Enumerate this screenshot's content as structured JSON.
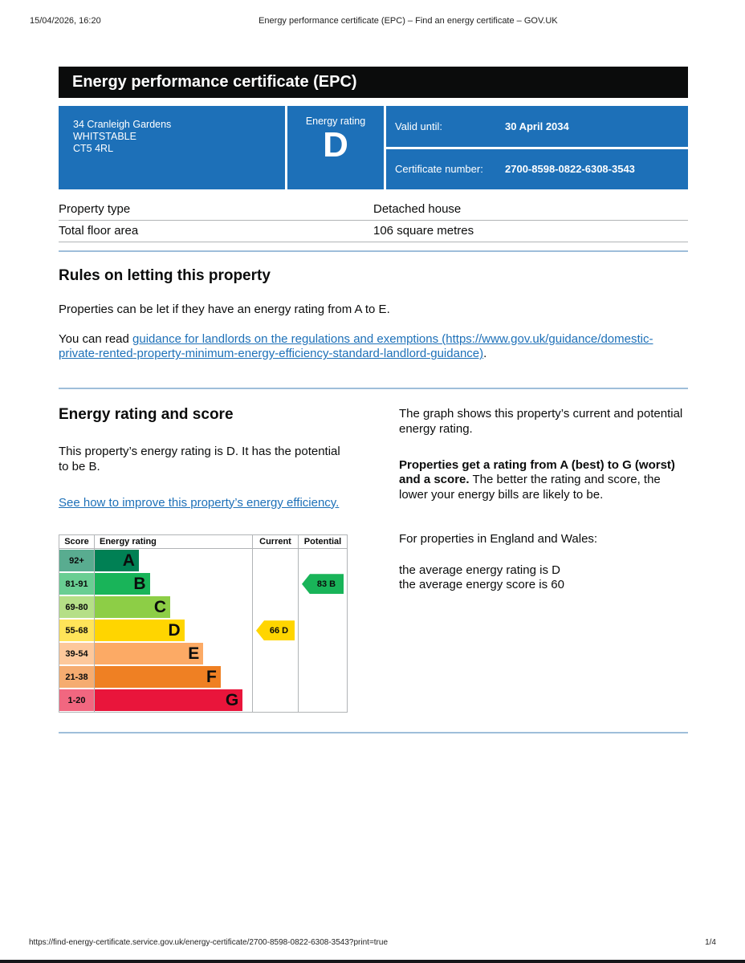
{
  "theme": {
    "accent_blue": "#1d70b8",
    "ink": "#0b0c0c",
    "banner_black": "#0b0c0c",
    "divider_blue": "#9ebeda",
    "grid_gray": "#b1b4b6"
  },
  "print_chrome": {
    "datetime": "15/04/2026, 16:20",
    "document_title": "Energy performance certificate (EPC) – Find an energy certificate – GOV.UK",
    "footer_url": "https://find-energy-certificate.service.gov.uk/energy-certificate/2700-8598-0822-6308-3543?print=true",
    "page_number": "1/4"
  },
  "banner": {
    "title": "Energy performance certificate (EPC)"
  },
  "summary": {
    "address_lines": [
      "34 Cranleigh Gardens",
      "WHITSTABLE",
      "CT5 4RL"
    ],
    "energy_rating_label": "Energy rating",
    "energy_rating": "D",
    "valid_until_label": "Valid until:",
    "valid_until_value": "30 April 2034",
    "certificate_number_label": "Certificate number:",
    "certificate_number_value": "2700-8598-0822-6308-3543"
  },
  "property_table": {
    "rows": [
      {
        "label": "Property type",
        "value": "Detached house"
      },
      {
        "label": "Total floor area",
        "value": "106 square metres"
      }
    ]
  },
  "letting_section": {
    "heading": "Rules on letting this property",
    "paragraph1": "Properties can be let if they have an energy rating from A to E.",
    "paragraph2_prefix": "You can read ",
    "link_text": "guidance for landlords on the regulations and exemptions (https://www.gov.uk/guidance/domestic-private-rented-property-minimum-energy-efficiency-standard-landlord-guidance)",
    "paragraph2_suffix": "."
  },
  "rating_section": {
    "heading": "Energy rating and score",
    "summary_paragraph": "This property’s energy rating is D. It has the potential to be B.",
    "improve_link_text": "See how to improve this property’s energy efficiency.",
    "graph_description": "The graph shows this property’s current and potential energy rating.",
    "explanation_bold": "Properties get a rating from A (best) to G (worst) and a score.",
    "explanation_rest": " The better the rating and score, the lower your energy bills are likely to be.",
    "england_wales_note": "For properties in England and Wales:",
    "average_rating_line": "the average energy rating is D",
    "average_score_line": "the average energy score is 60"
  },
  "chart_data": {
    "type": "bar",
    "subtype": "epc-rating-bands",
    "columns": [
      "Score",
      "Energy rating",
      "Current",
      "Potential"
    ],
    "bands": [
      {
        "score_range": "92+",
        "letter": "A",
        "color": "#008054",
        "score_bg": "#59ac90",
        "bar_pct": 28
      },
      {
        "score_range": "81-91",
        "letter": "B",
        "color": "#19b459",
        "score_bg": "#69ce93",
        "bar_pct": 35
      },
      {
        "score_range": "69-80",
        "letter": "C",
        "color": "#8dce46",
        "score_bg": "#b5df87",
        "bar_pct": 48
      },
      {
        "score_range": "55-68",
        "letter": "D",
        "color": "#ffd500",
        "score_bg": "#ffe459",
        "bar_pct": 57
      },
      {
        "score_range": "39-54",
        "letter": "E",
        "color": "#fcaa65",
        "score_bg": "#fdc89b",
        "bar_pct": 69
      },
      {
        "score_range": "21-38",
        "letter": "F",
        "color": "#ef8023",
        "score_bg": "#f5ac70",
        "bar_pct": 80
      },
      {
        "score_range": "1-20",
        "letter": "G",
        "color": "#e9153b",
        "score_bg": "#f16780",
        "bar_pct": 94
      }
    ],
    "current": {
      "score": 66,
      "rating": "D",
      "label": "66 D",
      "band_index": 3,
      "color": "#ffd500"
    },
    "potential": {
      "score": 83,
      "rating": "B",
      "label": "83 B",
      "band_index": 1,
      "color": "#19b459"
    }
  }
}
